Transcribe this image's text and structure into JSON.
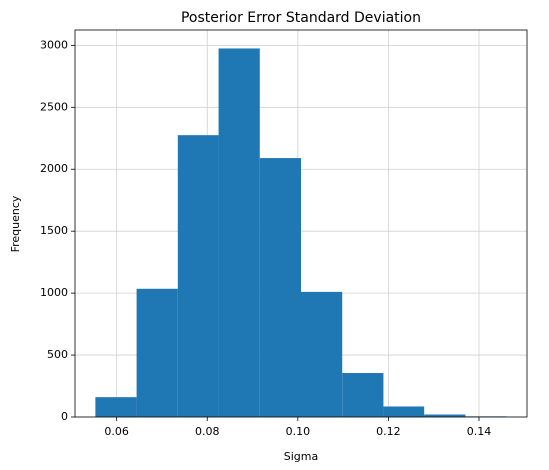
{
  "chart_data": {
    "type": "histogram",
    "title": "Posterior Error Standard Deviation",
    "x_label": "Sigma",
    "y_label": "Frequency",
    "bins": [
      0.0553,
      0.0644,
      0.0735,
      0.0825,
      0.0916,
      0.1007,
      0.1098,
      0.1189,
      0.1279,
      0.137,
      0.1461
    ],
    "counts": [
      160,
      1035,
      2275,
      2975,
      2090,
      1010,
      355,
      85,
      20,
      5
    ],
    "color": "#1f77b4",
    "xlim": [
      0.0508,
      0.1506
    ],
    "xticks": [
      0.06,
      0.08,
      {
        "value": 0.1,
        "label": "0.10"
      },
      0.12,
      0.14
    ],
    "ylim": [
      0,
      3124
    ],
    "yticks": [
      0,
      500,
      1000,
      1500,
      2000,
      2500,
      3000
    ],
    "grid": true
  }
}
